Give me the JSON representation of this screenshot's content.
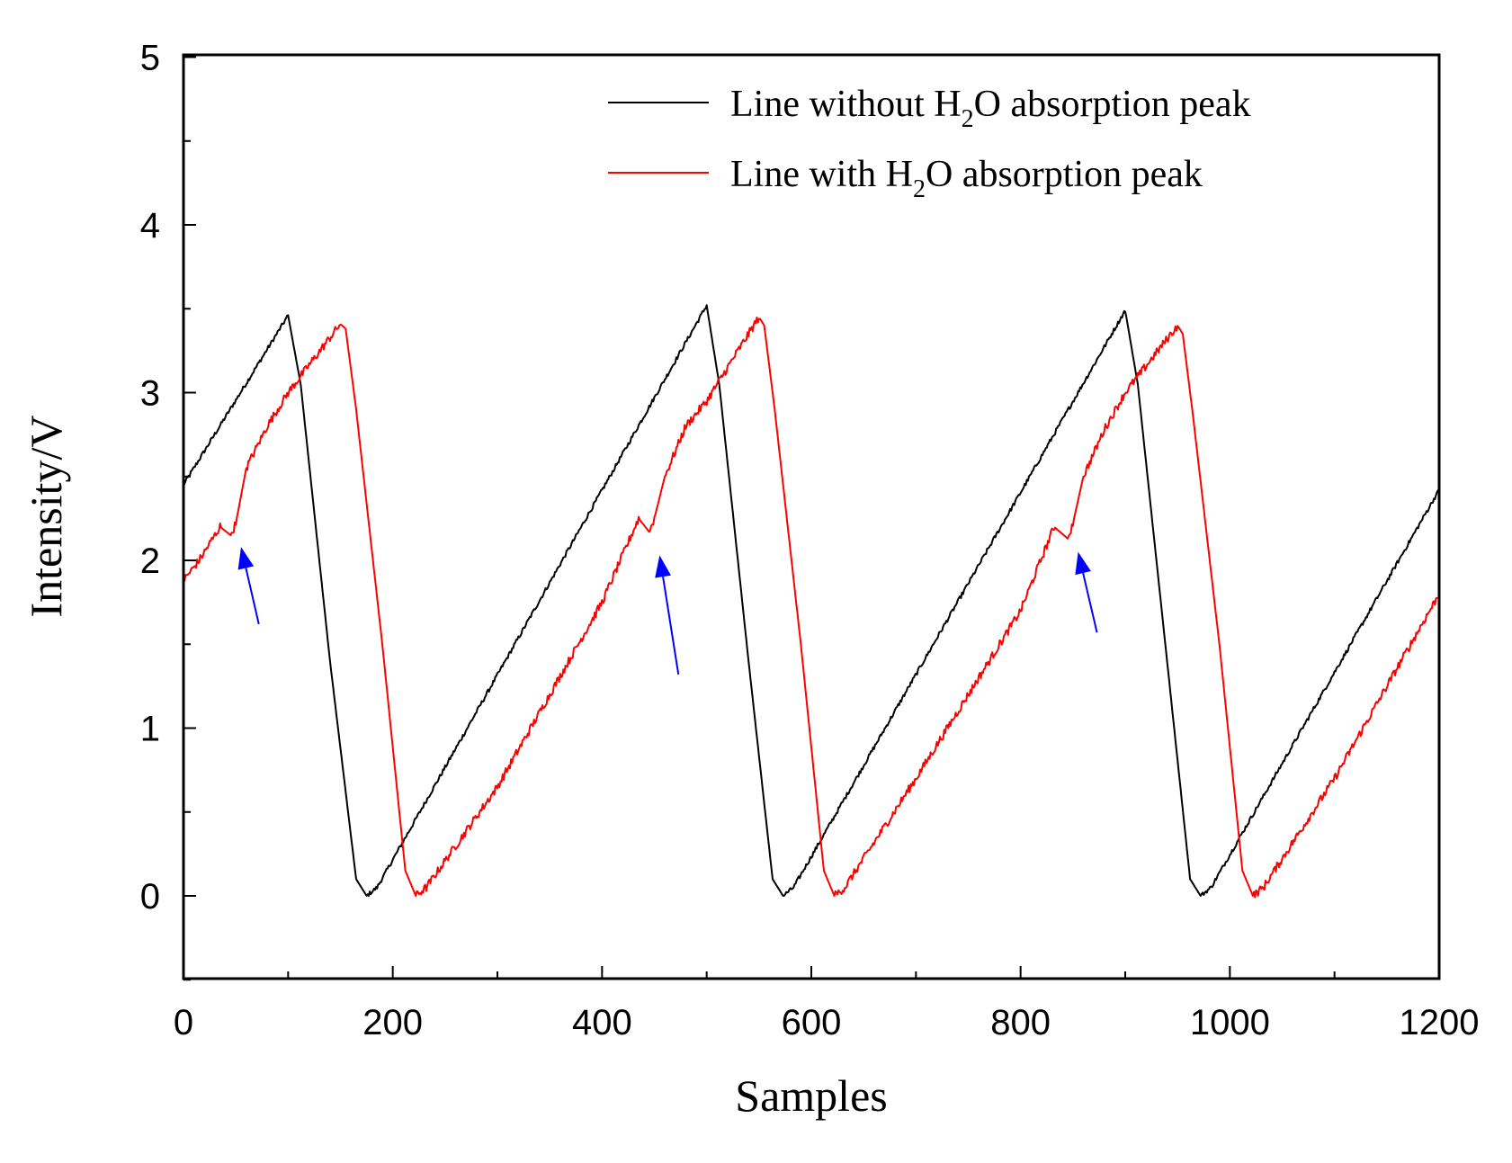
{
  "chart_data": {
    "type": "line",
    "title": "",
    "xlabel": "Samples",
    "ylabel": "Intensity/V",
    "xlim": [
      0,
      1200
    ],
    "ylim": [
      -0.5,
      5
    ],
    "x_ticks": [
      0,
      200,
      400,
      600,
      800,
      1000,
      1200
    ],
    "x_tick_labels": [
      "0",
      "200",
      "400",
      "600",
      "800",
      "1000",
      "1200"
    ],
    "x_minor_ticks": [
      100,
      300,
      500,
      700,
      900,
      1100
    ],
    "y_ticks": [
      0,
      1,
      2,
      3,
      4,
      5
    ],
    "y_tick_labels": [
      "0",
      "1",
      "2",
      "3",
      "4",
      "5"
    ],
    "y_minor_ticks": [
      -0.5,
      0.5,
      1.5,
      2.5,
      3.5,
      4.5
    ],
    "grid": false,
    "legend_position": "top-right",
    "series": [
      {
        "name": "Line without H2O absorption peak",
        "legend": {
          "prefix": "Line without H",
          "subscript": "2",
          "suffix": "O absorption peak"
        },
        "color": "#000000",
        "points": [
          [
            0,
            2.45
          ],
          [
            100,
            3.46
          ],
          [
            112,
            3.05
          ],
          [
            140,
            1.4
          ],
          [
            165,
            0.1
          ],
          [
            175,
            0.0
          ],
          [
            185,
            0.05
          ],
          [
            500,
            3.52
          ],
          [
            512,
            3.05
          ],
          [
            540,
            1.4
          ],
          [
            563,
            0.1
          ],
          [
            573,
            0.0
          ],
          [
            583,
            0.05
          ],
          [
            900,
            3.49
          ],
          [
            912,
            3.05
          ],
          [
            940,
            1.4
          ],
          [
            962,
            0.1
          ],
          [
            972,
            0.0
          ],
          [
            982,
            0.05
          ],
          [
            1200,
            2.42
          ]
        ]
      },
      {
        "name": "Line with H2O absorption peak",
        "legend": {
          "prefix": "Line with H",
          "subscript": "2",
          "suffix": "O absorption peak"
        },
        "color": "#ff0000",
        "points": [
          [
            0,
            1.88
          ],
          [
            15,
            2.0
          ],
          [
            35,
            2.2
          ],
          [
            45,
            2.15
          ],
          [
            50,
            2.22
          ],
          [
            60,
            2.55
          ],
          [
            80,
            2.8
          ],
          [
            100,
            3.0
          ],
          [
            150,
            3.41
          ],
          [
            155,
            3.38
          ],
          [
            165,
            2.9
          ],
          [
            190,
            1.5
          ],
          [
            212,
            0.15
          ],
          [
            222,
            0.0
          ],
          [
            232,
            0.05
          ],
          [
            300,
            0.65
          ],
          [
            400,
            1.75
          ],
          [
            435,
            2.25
          ],
          [
            445,
            2.17
          ],
          [
            450,
            2.25
          ],
          [
            460,
            2.5
          ],
          [
            480,
            2.8
          ],
          [
            500,
            2.95
          ],
          [
            550,
            3.45
          ],
          [
            555,
            3.4
          ],
          [
            565,
            2.9
          ],
          [
            590,
            1.5
          ],
          [
            612,
            0.15
          ],
          [
            622,
            0.0
          ],
          [
            632,
            0.05
          ],
          [
            700,
            0.7
          ],
          [
            800,
            1.7
          ],
          [
            832,
            2.2
          ],
          [
            845,
            2.13
          ],
          [
            850,
            2.22
          ],
          [
            860,
            2.5
          ],
          [
            880,
            2.78
          ],
          [
            900,
            3.0
          ],
          [
            950,
            3.4
          ],
          [
            955,
            3.35
          ],
          [
            965,
            2.85
          ],
          [
            990,
            1.5
          ],
          [
            1012,
            0.15
          ],
          [
            1022,
            0.0
          ],
          [
            1032,
            0.05
          ],
          [
            1100,
            0.7
          ],
          [
            1200,
            1.8
          ]
        ]
      }
    ],
    "annotations": [
      {
        "type": "arrow",
        "color": "#0000ff",
        "from": [
          72,
          1.62
        ],
        "to": [
          55,
          2.08
        ]
      },
      {
        "type": "arrow",
        "color": "#0000ff",
        "from": [
          473,
          1.32
        ],
        "to": [
          455,
          2.03
        ]
      },
      {
        "type": "arrow",
        "color": "#0000ff",
        "from": [
          873,
          1.57
        ],
        "to": [
          855,
          2.05
        ]
      }
    ]
  }
}
